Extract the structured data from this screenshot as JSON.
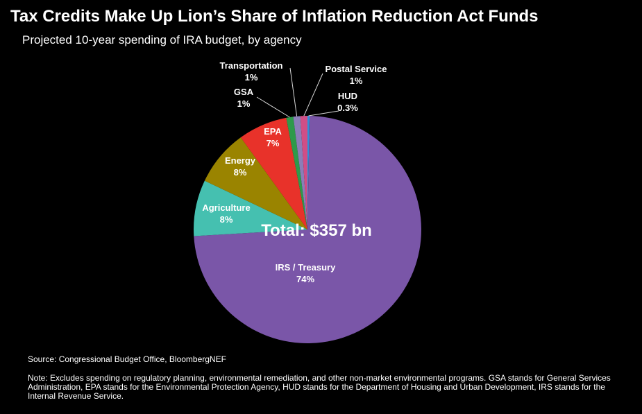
{
  "title": "Tax Credits Make Up Lion’s Share of Inflation Reduction Act Funds",
  "subtitle": "Projected 10-year spending of IRA budget, by agency",
  "source": "Source: Congressional  Budget  Office,  BloombergNEF",
  "note": "Note: Excludes spending on regulatory  planning,  environmental  remediation,  and other non-market environmental   programs. GSA stands for General Services  Administration, EPA stands for the Environmental  Protection Agency, HUD stands for the Department  of Housing and Urban Development,  IRS stands for the Internal Revenue  Service.",
  "chart_data": {
    "type": "pie",
    "title": "Tax Credits Make Up Lion’s Share of Inflation Reduction Act Funds",
    "subtitle": "Projected 10-year spending of IRA budget, by agency",
    "center_label": "Total:  $357 bn",
    "total": 357,
    "unit": "bn",
    "slices": [
      {
        "name": "HUD",
        "value": 0.3,
        "label": "0.3%",
        "color": "#2f8ed8"
      },
      {
        "name": "IRS  / Treasury",
        "value": 74,
        "label": "74%",
        "color": "#7a56a8"
      },
      {
        "name": "Agriculture",
        "value": 8,
        "label": "8%",
        "color": "#45c0b0"
      },
      {
        "name": "Energy",
        "value": 8,
        "label": "8%",
        "color": "#9a8400"
      },
      {
        "name": "EPA",
        "value": 7,
        "label": "7%",
        "color": "#e8322a"
      },
      {
        "name": "GSA",
        "value": 1,
        "label": "1%",
        "color": "#2d9a4a"
      },
      {
        "name": "Transportation",
        "value": 1,
        "label": "1%",
        "color": "#8a7eb8"
      },
      {
        "name": "Postal Service",
        "value": 1,
        "label": "1%",
        "color": "#d04e86"
      }
    ]
  }
}
